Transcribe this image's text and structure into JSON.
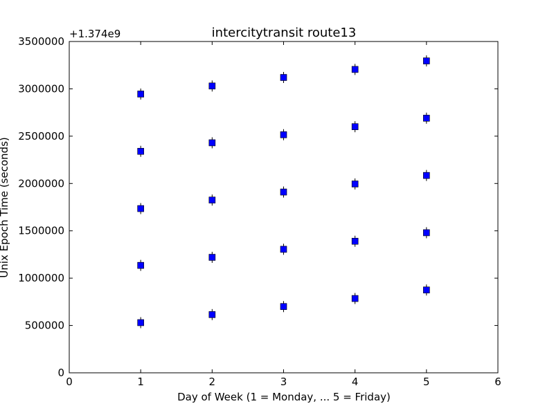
{
  "chart_data": {
    "type": "scatter",
    "title": "intercitytransit route13",
    "xlabel": "Day of Week (1 = Monday, ... 5 = Friday)",
    "ylabel": "Unix Epoch Time (seconds)",
    "offset_label": "+1.374e9",
    "xlim": [
      0,
      6
    ],
    "ylim": [
      0,
      3500000
    ],
    "x_ticks": [
      0,
      1,
      2,
      3,
      4,
      5,
      6
    ],
    "x_tick_labels": [
      "0",
      "1",
      "2",
      "3",
      "4",
      "5",
      "6"
    ],
    "y_ticks": [
      0,
      500000,
      1000000,
      1500000,
      2000000,
      2500000,
      3000000,
      3500000
    ],
    "y_tick_labels": [
      "0",
      "500000",
      "1000000",
      "1500000",
      "2000000",
      "2500000",
      "3000000",
      "3500000"
    ],
    "grid": false,
    "marker": "square",
    "marker_color": "#0000ff",
    "points": [
      {
        "x": 1,
        "y": 530000
      },
      {
        "x": 1,
        "y": 1135000
      },
      {
        "x": 1,
        "y": 1735000
      },
      {
        "x": 1,
        "y": 2340000
      },
      {
        "x": 1,
        "y": 2945000
      },
      {
        "x": 2,
        "y": 615000
      },
      {
        "x": 2,
        "y": 1220000
      },
      {
        "x": 2,
        "y": 1825000
      },
      {
        "x": 2,
        "y": 2430000
      },
      {
        "x": 2,
        "y": 3030000
      },
      {
        "x": 3,
        "y": 700000
      },
      {
        "x": 3,
        "y": 1305000
      },
      {
        "x": 3,
        "y": 1910000
      },
      {
        "x": 3,
        "y": 2515000
      },
      {
        "x": 3,
        "y": 3120000
      },
      {
        "x": 4,
        "y": 785000
      },
      {
        "x": 4,
        "y": 1390000
      },
      {
        "x": 4,
        "y": 1995000
      },
      {
        "x": 4,
        "y": 2600000
      },
      {
        "x": 4,
        "y": 3205000
      },
      {
        "x": 5,
        "y": 875000
      },
      {
        "x": 5,
        "y": 1480000
      },
      {
        "x": 5,
        "y": 2085000
      },
      {
        "x": 5,
        "y": 2690000
      },
      {
        "x": 5,
        "y": 3295000
      }
    ]
  }
}
